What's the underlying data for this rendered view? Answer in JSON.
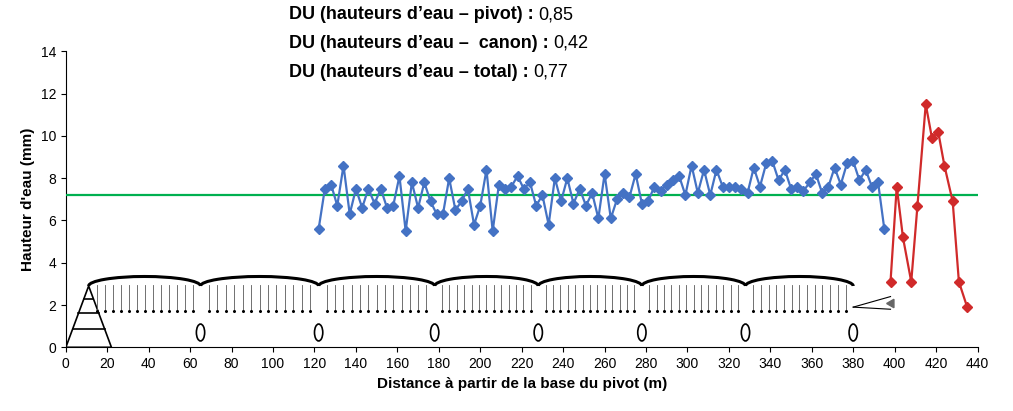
{
  "chart_data": {
    "type": "line",
    "annotations": [
      {
        "label": "DU (hauteurs d’eau – pivot) :",
        "value": 0.85,
        "value_label": "0,85"
      },
      {
        "label": "DU (hauteurs d’eau –  canon) :",
        "value": 0.42,
        "value_label": "0,42"
      },
      {
        "label": "DU (hauteurs d’eau – total) :",
        "value": 0.77,
        "value_label": "0,77"
      }
    ],
    "x_label": "Distance à partir de la base du pivot (m)",
    "y_label": "Hauteur d'eau (mm)",
    "xlim": [
      0,
      440
    ],
    "ylim": [
      0,
      14
    ],
    "xticks": [
      0,
      20,
      40,
      60,
      80,
      100,
      120,
      140,
      160,
      180,
      200,
      220,
      240,
      260,
      280,
      300,
      320,
      340,
      360,
      380,
      400,
      420,
      440
    ],
    "yticks": [
      0,
      2,
      4,
      6,
      8,
      10,
      12,
      14
    ],
    "grid": false,
    "reference_lines": [
      {
        "value": 7.2,
        "color": "#00b050"
      }
    ],
    "series": [
      {
        "color": "#4472c4",
        "marker": "diamond",
        "line_style": "solid",
        "x": [
          122,
          125,
          128,
          131,
          134,
          137,
          140,
          143,
          146,
          149,
          152,
          155,
          158,
          161,
          164,
          167,
          170,
          173,
          176,
          179,
          182,
          185,
          188,
          191,
          194,
          197,
          200,
          203,
          206,
          209,
          212,
          215,
          218,
          221,
          224,
          227,
          230,
          233,
          236,
          239,
          242,
          245,
          248,
          251,
          254,
          257,
          260,
          263,
          266,
          269,
          272,
          275,
          278,
          281,
          284,
          287,
          290,
          293,
          296,
          299,
          302,
          305,
          308,
          311,
          314,
          317,
          320,
          323,
          326,
          329,
          332,
          335,
          338,
          341,
          344,
          347,
          350,
          353,
          356,
          359,
          362,
          365,
          368,
          371,
          374,
          377,
          380,
          383,
          386,
          389,
          392,
          395
        ],
        "values": [
          5.6,
          7.5,
          7.7,
          6.7,
          8.6,
          6.3,
          7.5,
          6.6,
          7.5,
          6.8,
          7.5,
          6.6,
          6.7,
          8.1,
          5.5,
          7.8,
          6.6,
          7.8,
          6.9,
          6.3,
          6.3,
          8.0,
          6.5,
          6.9,
          7.5,
          5.8,
          6.7,
          8.4,
          5.5,
          7.7,
          7.5,
          7.6,
          8.1,
          7.5,
          7.8,
          6.7,
          7.2,
          5.8,
          8.0,
          6.9,
          8.0,
          6.8,
          7.5,
          6.7,
          7.3,
          6.1,
          8.2,
          6.1,
          7.0,
          7.3,
          7.1,
          8.2,
          6.8,
          6.9,
          7.6,
          7.4,
          7.7,
          7.9,
          8.1,
          7.2,
          8.6,
          7.3,
          8.4,
          7.2,
          8.4,
          7.6,
          7.6,
          7.6,
          7.5,
          7.3,
          8.5,
          7.6,
          8.7,
          8.8,
          7.9,
          8.4,
          7.5,
          7.6,
          7.4,
          7.8,
          8.2,
          7.3,
          7.6,
          8.5,
          7.7,
          8.7,
          8.8,
          7.9,
          8.4,
          7.6,
          7.8,
          5.6
        ]
      },
      {
        "color": "#d02a2a",
        "marker": "diamond",
        "line_style": "solid",
        "x": [
          398,
          401,
          404,
          408,
          411,
          415,
          418,
          421,
          424,
          428,
          431,
          435
        ],
        "values": [
          3.1,
          7.6,
          5.2,
          3.1,
          6.7,
          11.5,
          9.9,
          10.2,
          8.6,
          6.9,
          3.1,
          1.9
        ]
      }
    ]
  }
}
